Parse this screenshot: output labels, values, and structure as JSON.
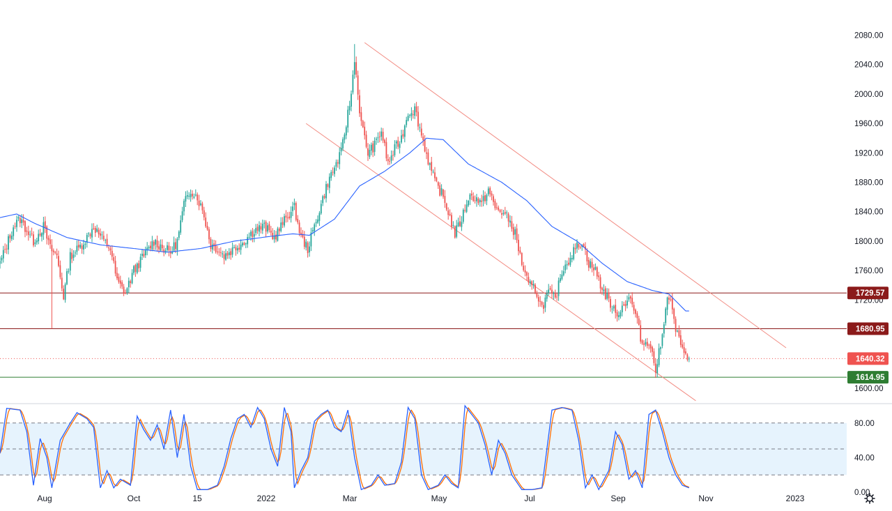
{
  "chart_data": {
    "type": "candlestick",
    "colors": {
      "up": "#26a69a",
      "down": "#ef5350",
      "ma_line": "#2962ff",
      "channel_line": "#f28b82",
      "resistance_line": "#8b1a1a",
      "support_line": "#2e7d32",
      "current_price_line": "#ef5350",
      "stoch_k": "#2962ff",
      "stoch_d": "#ff6d00",
      "stoch_band_fill": "#e3f2fd"
    },
    "price_axis": {
      "ylim": [
        1580,
        2090
      ],
      "ticks": [
        "2080.00",
        "2040.00",
        "2000.00",
        "1960.00",
        "1920.00",
        "1880.00",
        "1840.00",
        "1800.00",
        "1760.00",
        "1720.00",
        "1600.00"
      ]
    },
    "time_axis": {
      "labels": [
        "Aug",
        "Oct",
        "15",
        "2022",
        "Mar",
        "May",
        "Jul",
        "Sep",
        "Nov",
        "2023"
      ]
    },
    "price_keypoints": [
      {
        "i": 0,
        "p": 1770
      },
      {
        "i": 8,
        "p": 1820
      },
      {
        "i": 12,
        "p": 1830
      },
      {
        "i": 20,
        "p": 1800
      },
      {
        "i": 26,
        "p": 1820
      },
      {
        "i": 30,
        "p": 1790
      },
      {
        "i": 34,
        "p": 1780
      },
      {
        "i": 38,
        "p": 1725
      },
      {
        "i": 42,
        "p": 1780
      },
      {
        "i": 47,
        "p": 1790
      },
      {
        "i": 52,
        "p": 1805
      },
      {
        "i": 56,
        "p": 1820
      },
      {
        "i": 62,
        "p": 1800
      },
      {
        "i": 66,
        "p": 1790
      },
      {
        "i": 70,
        "p": 1745
      },
      {
        "i": 75,
        "p": 1730
      },
      {
        "i": 80,
        "p": 1760
      },
      {
        "i": 86,
        "p": 1780
      },
      {
        "i": 92,
        "p": 1800
      },
      {
        "i": 98,
        "p": 1790
      },
      {
        "i": 102,
        "p": 1785
      },
      {
        "i": 106,
        "p": 1800
      },
      {
        "i": 110,
        "p": 1850
      },
      {
        "i": 114,
        "p": 1870
      },
      {
        "i": 118,
        "p": 1860
      },
      {
        "i": 122,
        "p": 1835
      },
      {
        "i": 126,
        "p": 1795
      },
      {
        "i": 130,
        "p": 1790
      },
      {
        "i": 134,
        "p": 1780
      },
      {
        "i": 140,
        "p": 1790
      },
      {
        "i": 146,
        "p": 1800
      },
      {
        "i": 152,
        "p": 1815
      },
      {
        "i": 158,
        "p": 1820
      },
      {
        "i": 164,
        "p": 1805
      },
      {
        "i": 168,
        "p": 1820
      },
      {
        "i": 172,
        "p": 1835
      },
      {
        "i": 176,
        "p": 1845
      },
      {
        "i": 180,
        "p": 1805
      },
      {
        "i": 184,
        "p": 1790
      },
      {
        "i": 188,
        "p": 1820
      },
      {
        "i": 192,
        "p": 1850
      },
      {
        "i": 196,
        "p": 1880
      },
      {
        "i": 200,
        "p": 1900
      },
      {
        "i": 204,
        "p": 1920
      },
      {
        "i": 207,
        "p": 1960
      },
      {
        "i": 210,
        "p": 2000
      },
      {
        "i": 212,
        "p": 2050
      },
      {
        "i": 214,
        "p": 2000
      },
      {
        "i": 216,
        "p": 1960
      },
      {
        "i": 220,
        "p": 1920
      },
      {
        "i": 224,
        "p": 1930
      },
      {
        "i": 228,
        "p": 1950
      },
      {
        "i": 232,
        "p": 1905
      },
      {
        "i": 236,
        "p": 1925
      },
      {
        "i": 240,
        "p": 1940
      },
      {
        "i": 244,
        "p": 1975
      },
      {
        "i": 248,
        "p": 1980
      },
      {
        "i": 252,
        "p": 1945
      },
      {
        "i": 256,
        "p": 1910
      },
      {
        "i": 260,
        "p": 1880
      },
      {
        "i": 264,
        "p": 1865
      },
      {
        "i": 268,
        "p": 1840
      },
      {
        "i": 272,
        "p": 1810
      },
      {
        "i": 276,
        "p": 1830
      },
      {
        "i": 280,
        "p": 1860
      },
      {
        "i": 284,
        "p": 1860
      },
      {
        "i": 288,
        "p": 1850
      },
      {
        "i": 292,
        "p": 1870
      },
      {
        "i": 296,
        "p": 1845
      },
      {
        "i": 300,
        "p": 1840
      },
      {
        "i": 304,
        "p": 1830
      },
      {
        "i": 308,
        "p": 1810
      },
      {
        "i": 312,
        "p": 1770
      },
      {
        "i": 316,
        "p": 1740
      },
      {
        "i": 320,
        "p": 1735
      },
      {
        "i": 324,
        "p": 1710
      },
      {
        "i": 328,
        "p": 1730
      },
      {
        "i": 332,
        "p": 1720
      },
      {
        "i": 336,
        "p": 1760
      },
      {
        "i": 340,
        "p": 1775
      },
      {
        "i": 344,
        "p": 1790
      },
      {
        "i": 348,
        "p": 1800
      },
      {
        "i": 352,
        "p": 1770
      },
      {
        "i": 356,
        "p": 1760
      },
      {
        "i": 360,
        "p": 1735
      },
      {
        "i": 364,
        "p": 1720
      },
      {
        "i": 368,
        "p": 1700
      },
      {
        "i": 372,
        "p": 1710
      },
      {
        "i": 376,
        "p": 1725
      },
      {
        "i": 380,
        "p": 1700
      },
      {
        "i": 384,
        "p": 1660
      },
      {
        "i": 388,
        "p": 1665
      },
      {
        "i": 392,
        "p": 1625
      },
      {
        "i": 396,
        "p": 1670
      },
      {
        "i": 398,
        "p": 1715
      },
      {
        "i": 400,
        "p": 1725
      },
      {
        "i": 402,
        "p": 1705
      },
      {
        "i": 404,
        "p": 1680
      },
      {
        "i": 406,
        "p": 1665
      },
      {
        "i": 408,
        "p": 1650
      },
      {
        "i": 410,
        "p": 1650
      },
      {
        "i": 412,
        "p": 1640
      }
    ],
    "notable_extremes": [
      {
        "i": 31,
        "low": 1680.95
      },
      {
        "i": 212,
        "high": 2068
      },
      {
        "i": 393,
        "low": 1614.95
      }
    ],
    "moving_average_keypoints": [
      {
        "i": 0,
        "p": 1832
      },
      {
        "i": 10,
        "p": 1837
      },
      {
        "i": 20,
        "p": 1825
      },
      {
        "i": 40,
        "p": 1805
      },
      {
        "i": 60,
        "p": 1795
      },
      {
        "i": 80,
        "p": 1790
      },
      {
        "i": 100,
        "p": 1785
      },
      {
        "i": 120,
        "p": 1790
      },
      {
        "i": 140,
        "p": 1800
      },
      {
        "i": 160,
        "p": 1806
      },
      {
        "i": 175,
        "p": 1810
      },
      {
        "i": 185,
        "p": 1808
      },
      {
        "i": 200,
        "p": 1830
      },
      {
        "i": 215,
        "p": 1875
      },
      {
        "i": 230,
        "p": 1895
      },
      {
        "i": 245,
        "p": 1920
      },
      {
        "i": 255,
        "p": 1940
      },
      {
        "i": 265,
        "p": 1938
      },
      {
        "i": 280,
        "p": 1905
      },
      {
        "i": 300,
        "p": 1880
      },
      {
        "i": 315,
        "p": 1855
      },
      {
        "i": 330,
        "p": 1820
      },
      {
        "i": 345,
        "p": 1800
      },
      {
        "i": 360,
        "p": 1770
      },
      {
        "i": 375,
        "p": 1745
      },
      {
        "i": 390,
        "p": 1733
      },
      {
        "i": 400,
        "p": 1728
      },
      {
        "i": 410,
        "p": 1705
      }
    ],
    "trend_channel": {
      "upper": {
        "start": {
          "i": 218,
          "p": 2070
        },
        "end": {
          "i": 470,
          "p": 1655
        }
      },
      "lower": {
        "start": {
          "i": 183,
          "p": 1960
        },
        "end": {
          "i": 416,
          "p": 1583
        }
      }
    },
    "horizontal_levels": [
      {
        "label": "1729.57",
        "value": 1729.57,
        "role": "resistance"
      },
      {
        "label": "1680.95",
        "value": 1680.95,
        "role": "resistance"
      },
      {
        "label": "1614.95",
        "value": 1614.95,
        "role": "support"
      }
    ],
    "current_price": {
      "label": "1640.32",
      "value": 1640.32
    },
    "stochastic": {
      "ylim": [
        0,
        100
      ],
      "ticks": [
        "80.00",
        "40.00",
        "0.00"
      ],
      "band": [
        20,
        80
      ],
      "dashed_levels": [
        80,
        50,
        20
      ],
      "k_keypoints": [
        {
          "i": 0,
          "v": 45
        },
        {
          "i": 4,
          "v": 97
        },
        {
          "i": 12,
          "v": 95
        },
        {
          "i": 16,
          "v": 70
        },
        {
          "i": 20,
          "v": 8
        },
        {
          "i": 24,
          "v": 62
        },
        {
          "i": 28,
          "v": 40
        },
        {
          "i": 31,
          "v": 5
        },
        {
          "i": 36,
          "v": 60
        },
        {
          "i": 42,
          "v": 80
        },
        {
          "i": 46,
          "v": 92
        },
        {
          "i": 52,
          "v": 85
        },
        {
          "i": 56,
          "v": 75
        },
        {
          "i": 60,
          "v": 5
        },
        {
          "i": 64,
          "v": 25
        },
        {
          "i": 68,
          "v": 5
        },
        {
          "i": 72,
          "v": 15
        },
        {
          "i": 78,
          "v": 8
        },
        {
          "i": 82,
          "v": 88
        },
        {
          "i": 86,
          "v": 72
        },
        {
          "i": 90,
          "v": 60
        },
        {
          "i": 94,
          "v": 78
        },
        {
          "i": 98,
          "v": 50
        },
        {
          "i": 102,
          "v": 95
        },
        {
          "i": 106,
          "v": 40
        },
        {
          "i": 110,
          "v": 90
        },
        {
          "i": 114,
          "v": 30
        },
        {
          "i": 118,
          "v": 3
        },
        {
          "i": 124,
          "v": 3
        },
        {
          "i": 130,
          "v": 8
        },
        {
          "i": 134,
          "v": 30
        },
        {
          "i": 138,
          "v": 62
        },
        {
          "i": 142,
          "v": 85
        },
        {
          "i": 146,
          "v": 90
        },
        {
          "i": 150,
          "v": 75
        },
        {
          "i": 154,
          "v": 98
        },
        {
          "i": 158,
          "v": 85
        },
        {
          "i": 162,
          "v": 50
        },
        {
          "i": 166,
          "v": 30
        },
        {
          "i": 170,
          "v": 98
        },
        {
          "i": 174,
          "v": 70
        },
        {
          "i": 176,
          "v": 5
        },
        {
          "i": 180,
          "v": 25
        },
        {
          "i": 184,
          "v": 40
        },
        {
          "i": 188,
          "v": 82
        },
        {
          "i": 192,
          "v": 90
        },
        {
          "i": 196,
          "v": 95
        },
        {
          "i": 200,
          "v": 75
        },
        {
          "i": 204,
          "v": 70
        },
        {
          "i": 208,
          "v": 95
        },
        {
          "i": 212,
          "v": 40
        },
        {
          "i": 216,
          "v": 3
        },
        {
          "i": 222,
          "v": 8
        },
        {
          "i": 226,
          "v": 20
        },
        {
          "i": 230,
          "v": 8
        },
        {
          "i": 236,
          "v": 10
        },
        {
          "i": 240,
          "v": 35
        },
        {
          "i": 244,
          "v": 98
        },
        {
          "i": 248,
          "v": 85
        },
        {
          "i": 252,
          "v": 20
        },
        {
          "i": 256,
          "v": 3
        },
        {
          "i": 262,
          "v": 8
        },
        {
          "i": 266,
          "v": 20
        },
        {
          "i": 270,
          "v": 10
        },
        {
          "i": 274,
          "v": 5
        },
        {
          "i": 278,
          "v": 100
        },
        {
          "i": 282,
          "v": 90
        },
        {
          "i": 286,
          "v": 80
        },
        {
          "i": 290,
          "v": 55
        },
        {
          "i": 294,
          "v": 20
        },
        {
          "i": 298,
          "v": 60
        },
        {
          "i": 302,
          "v": 45
        },
        {
          "i": 306,
          "v": 20
        },
        {
          "i": 312,
          "v": 3
        },
        {
          "i": 318,
          "v": 3
        },
        {
          "i": 324,
          "v": 5
        },
        {
          "i": 330,
          "v": 95
        },
        {
          "i": 336,
          "v": 98
        },
        {
          "i": 342,
          "v": 95
        },
        {
          "i": 346,
          "v": 60
        },
        {
          "i": 350,
          "v": 5
        },
        {
          "i": 354,
          "v": 20
        },
        {
          "i": 358,
          "v": 3
        },
        {
          "i": 364,
          "v": 25
        },
        {
          "i": 368,
          "v": 70
        },
        {
          "i": 372,
          "v": 55
        },
        {
          "i": 376,
          "v": 15
        },
        {
          "i": 380,
          "v": 25
        },
        {
          "i": 384,
          "v": 5
        },
        {
          "i": 388,
          "v": 90
        },
        {
          "i": 392,
          "v": 95
        },
        {
          "i": 396,
          "v": 70
        },
        {
          "i": 400,
          "v": 40
        },
        {
          "i": 404,
          "v": 20
        },
        {
          "i": 408,
          "v": 8
        },
        {
          "i": 412,
          "v": 5
        }
      ]
    }
  }
}
